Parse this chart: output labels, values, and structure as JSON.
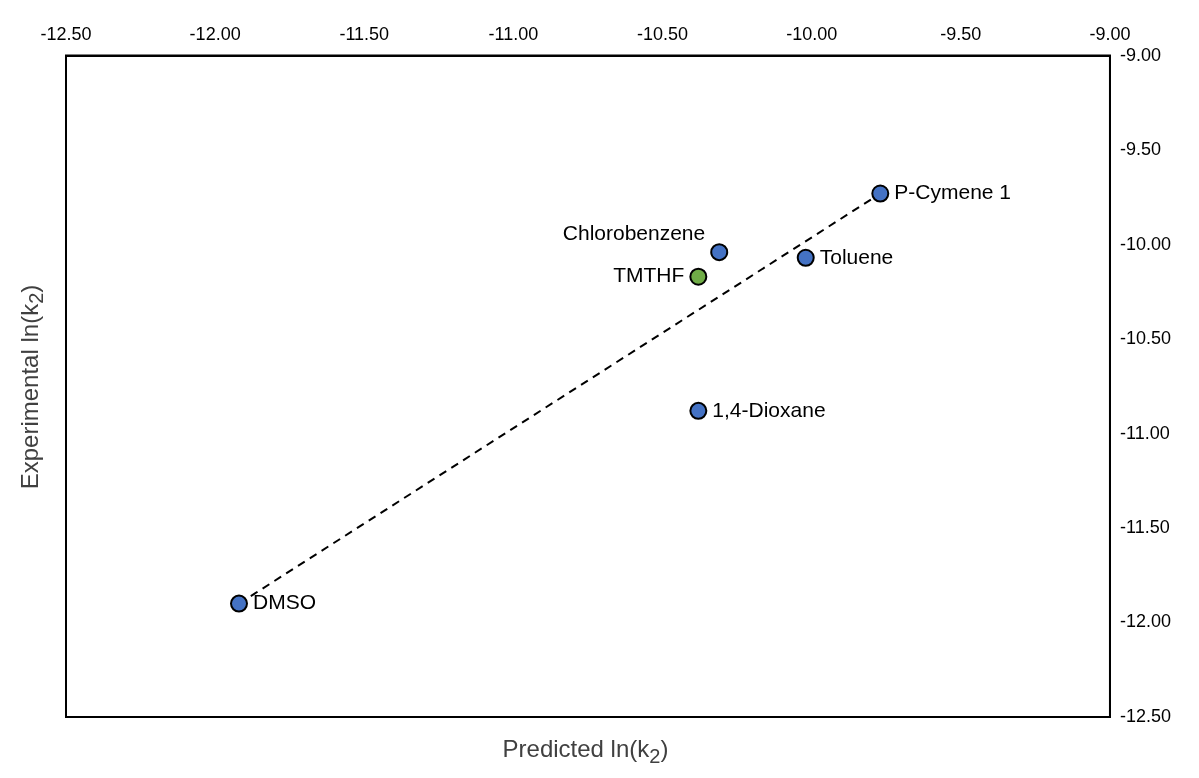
{
  "chart_data": {
    "type": "scatter",
    "xlabel": "Predicted ln(k$_{2}$)",
    "ylabel": "Experimental ln(k$_{2}$)",
    "series": [
      {
        "x": [
          -11.92,
          -9.77,
          -10.31,
          -10.02,
          -10.38,
          -10.38
        ],
        "values": [
          -11.9,
          -9.73,
          -10.04,
          -10.07,
          -10.17,
          -10.88
        ],
        "colors": [
          "#4472c4",
          "#4472c4",
          "#4472c4",
          "#4472c4",
          "#70ad47",
          "#4472c4"
        ],
        "marker": "circle"
      },
      {
        "type": "line",
        "x": [
          -11.92,
          -9.77
        ],
        "values": [
          -11.9,
          -9.73
        ],
        "color": "#000000",
        "line_style": "dashed",
        "marker": "none"
      }
    ],
    "annotations": [
      {
        "text": "DMSO",
        "x": -11.92,
        "y": -11.9
      },
      {
        "text": "P-Cymene 1",
        "x": -9.77,
        "y": -9.73
      },
      {
        "text": "Chlorobenzene",
        "x": -10.31,
        "y": -10.04
      },
      {
        "text": "Toluene",
        "x": -10.02,
        "y": -10.07
      },
      {
        "text": "TMTHF",
        "x": -10.38,
        "y": -10.17
      },
      {
        "text": "1,4-Dioxane",
        "x": -10.38,
        "y": -10.88
      }
    ],
    "xlim": [
      -12.5,
      -9
    ],
    "ylim": [
      -12.5,
      -9
    ],
    "xticks": [
      {
        "value": -12.5,
        "label": "-12.50"
      },
      {
        "value": -12,
        "label": "-12.00"
      },
      {
        "value": -11.5,
        "label": "-11.50"
      },
      {
        "value": -11,
        "label": "-11.00"
      },
      {
        "value": -10.5,
        "label": "-10.50"
      },
      {
        "value": -10,
        "label": "-10.00"
      },
      {
        "value": -9.5,
        "label": "-9.50"
      },
      {
        "value": -9,
        "label": "-9.00"
      }
    ],
    "yticks": [
      {
        "value": -12.5,
        "label": "-12.50"
      },
      {
        "value": -12,
        "label": "-12.00"
      },
      {
        "value": -11.5,
        "label": "-11.50"
      },
      {
        "value": -11,
        "label": "-11.00"
      },
      {
        "value": -10.5,
        "label": "-10.50"
      },
      {
        "value": -10,
        "label": "-10.00"
      },
      {
        "value": -9.5,
        "label": "-9.50"
      },
      {
        "value": -9,
        "label": "-9.00"
      }
    ],
    "grid": false,
    "legend": false
  }
}
